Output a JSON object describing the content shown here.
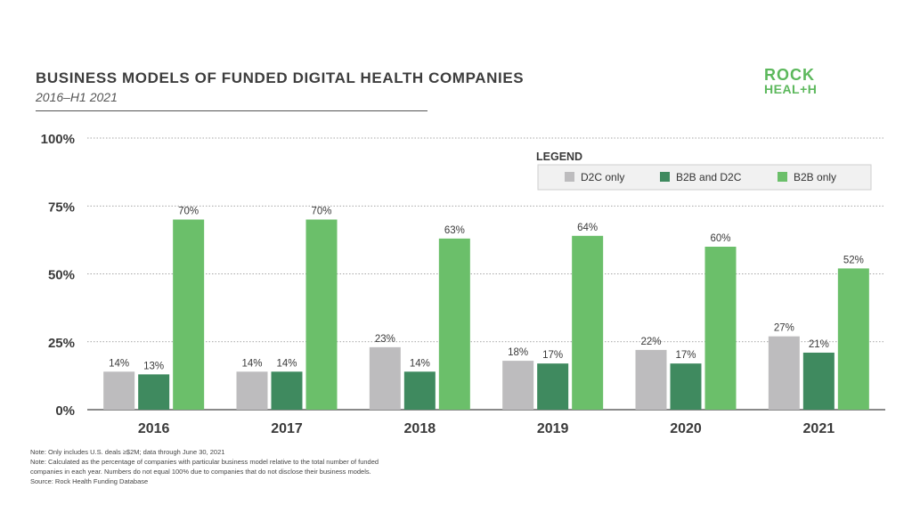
{
  "header": {
    "title": "BUSINESS MODELS OF FUNDED DIGITAL HEALTH COMPANIES",
    "subtitle": "2016–H1 2021"
  },
  "logo": {
    "line1": "ROCK",
    "line2": "HEAL+H",
    "color": "#5cb85c"
  },
  "legend": {
    "title": "LEGEND",
    "items": [
      "D2C only",
      "B2B and D2C",
      "B2B only"
    ]
  },
  "notes": [
    "Note: Only includes U.S. deals ≥$2M; data through June 30, 2021",
    "Note: Calculated as the percentage of companies with particular business model relative to the total number of funded",
    "companies in each year. Numbers do not equal 100% due to companies that do not disclose their business models.",
    "Source: Rock Health Funding Database"
  ],
  "chart_data": {
    "type": "bar",
    "title": "BUSINESS MODELS OF FUNDED DIGITAL HEALTH COMPANIES",
    "subtitle": "2016–H1 2021",
    "categories": [
      "2016",
      "2017",
      "2018",
      "2019",
      "2020",
      "2021"
    ],
    "series": [
      {
        "name": "D2C only",
        "values": [
          14,
          14,
          23,
          18,
          22,
          27
        ],
        "labels": [
          "14%",
          "14%",
          "23%",
          "18%",
          "22%",
          "27%"
        ],
        "color": "#bdbcbe"
      },
      {
        "name": "B2B and D2C",
        "values": [
          13,
          14,
          14,
          17,
          17,
          21
        ],
        "labels": [
          "13%",
          "14%",
          "14%",
          "17%",
          "17%",
          "21%"
        ],
        "color": "#3f8a5f"
      },
      {
        "name": "B2B only",
        "values": [
          70,
          70,
          63,
          64,
          60,
          52
        ],
        "labels": [
          "70%",
          "70%",
          "63%",
          "64%",
          "60%",
          "52%"
        ],
        "color": "#6bbf6a"
      }
    ],
    "yticks": [
      "0%",
      "25%",
      "50%",
      "75%",
      "100%"
    ],
    "ytick_values": [
      0,
      25,
      50,
      75,
      100
    ],
    "ylim": [
      0,
      100
    ],
    "grid": true,
    "legend_position": "top-right"
  }
}
